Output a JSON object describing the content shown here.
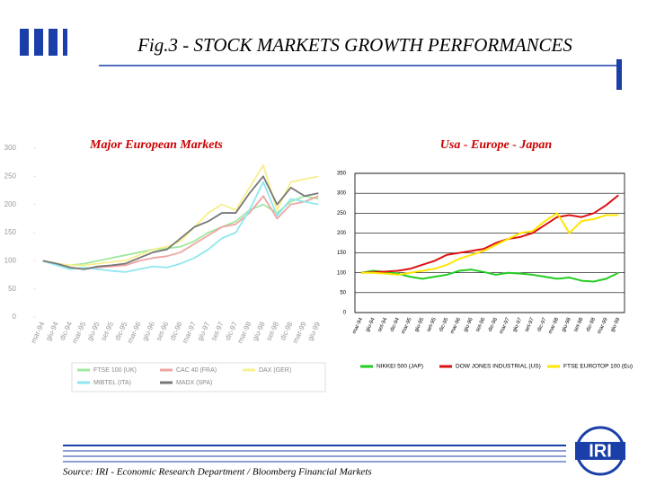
{
  "slide": {
    "title": "Fig.3 - STOCK MARKETS GROWTH PERFORMANCES",
    "source": "Source: IRI - Economic Research Department / Bloomberg Financial Markets",
    "logo": "IRI"
  },
  "chart_data": [
    {
      "type": "line",
      "title": "Major European Markets",
      "categories": [
        "mar-94",
        "giu-94",
        "dic-94",
        "mar-95",
        "giu-95",
        "set-95",
        "dic-95",
        "mar-96",
        "giu-96",
        "set-96",
        "dic-96",
        "mar-97",
        "giu-97",
        "set-97",
        "dic-97",
        "mar-98",
        "giu-98",
        "set-98",
        "dic-98",
        "mar-99",
        "giu-99"
      ],
      "series": [
        {
          "name": "FTSE 100 (UK)",
          "color": "#9fe89f",
          "values": [
            100,
            95,
            92,
            95,
            100,
            105,
            110,
            115,
            120,
            122,
            125,
            135,
            150,
            160,
            170,
            190,
            200,
            185,
            205,
            215,
            210
          ]
        },
        {
          "name": "CAC 40 (FRA)",
          "color": "#f0a4a4",
          "values": [
            100,
            95,
            88,
            85,
            88,
            90,
            92,
            100,
            105,
            108,
            115,
            130,
            145,
            160,
            165,
            185,
            215,
            175,
            200,
            205,
            215
          ]
        },
        {
          "name": "DAX (GER)",
          "color": "#f6f08c",
          "values": [
            100,
            95,
            92,
            92,
            95,
            98,
            100,
            110,
            120,
            125,
            135,
            160,
            185,
            200,
            190,
            230,
            270,
            190,
            240,
            245,
            250
          ]
        },
        {
          "name": "MIBTEL (ITA)",
          "color": "#8ee8ee",
          "values": [
            100,
            92,
            85,
            88,
            85,
            82,
            80,
            85,
            90,
            88,
            95,
            105,
            120,
            140,
            150,
            190,
            240,
            180,
            210,
            205,
            200
          ]
        },
        {
          "name": "MADX (SPA)",
          "color": "#777777",
          "values": [
            100,
            95,
            88,
            85,
            90,
            92,
            95,
            105,
            115,
            120,
            140,
            160,
            170,
            185,
            185,
            220,
            250,
            200,
            230,
            215,
            220
          ]
        }
      ],
      "ylim": [
        0,
        300
      ],
      "yticks": [
        0,
        50,
        100,
        150,
        200,
        250,
        300
      ],
      "grid": false
    },
    {
      "type": "line",
      "title": "Usa - Europe - Japan",
      "categories": [
        "mar-94",
        "giu-94",
        "set-94",
        "dic-94",
        "mar-95",
        "giu-95",
        "set-95",
        "dic-95",
        "mar-96",
        "giu-96",
        "set-96",
        "dic-96",
        "mar-97",
        "giu-97",
        "set-97",
        "dic-97",
        "mar-98",
        "giu-98",
        "set-98",
        "dic-98",
        "mar-99",
        "giu-99"
      ],
      "series": [
        {
          "name": "NIKKEI 500 (JAP)",
          "color": "#22cc22",
          "values": [
            100,
            105,
            102,
            98,
            90,
            85,
            90,
            95,
            105,
            108,
            102,
            95,
            100,
            98,
            95,
            90,
            85,
            88,
            80,
            78,
            85,
            100
          ]
        },
        {
          "name": "DOW JONES INDUSTRIAL (US)",
          "color": "#dd1111",
          "values": [
            100,
            102,
            103,
            105,
            110,
            120,
            130,
            145,
            150,
            155,
            160,
            175,
            185,
            190,
            200,
            220,
            240,
            245,
            240,
            250,
            270,
            295
          ]
        },
        {
          "name": "FTSE EUROTOP 100 (Eu)",
          "color": "#ffe600",
          "values": [
            100,
            100,
            98,
            95,
            100,
            105,
            110,
            120,
            135,
            145,
            155,
            170,
            185,
            200,
            205,
            230,
            250,
            200,
            230,
            235,
            245,
            245
          ]
        }
      ],
      "ylim": [
        0,
        350
      ],
      "yticks": [
        0,
        50,
        100,
        150,
        200,
        250,
        300,
        350
      ],
      "grid": true
    }
  ]
}
